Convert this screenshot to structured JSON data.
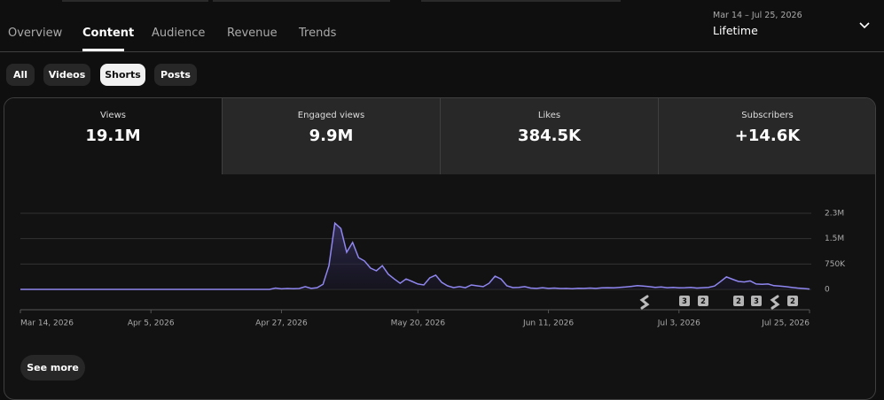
{
  "tabs": [
    "Overview",
    "Content",
    "Audience",
    "Revenue",
    "Trends"
  ],
  "date_range": {
    "range": "Mar 14 – Jul 25, 2026",
    "label": "Lifetime"
  },
  "filters": [
    "All",
    "Videos",
    "Shorts",
    "Posts"
  ],
  "metrics": [
    {
      "name": "Views",
      "value": "19.1M"
    },
    {
      "name": "Engaged views",
      "value": "9.9M"
    },
    {
      "name": "Likes",
      "value": "384.5K"
    },
    {
      "name": "Subscribers",
      "value": "+14.6K"
    }
  ],
  "see_more": "See more",
  "chart_data": {
    "type": "area",
    "color": "#8f86f0",
    "categories": [
      "Mar 14, 2026",
      null,
      null,
      null,
      null,
      null,
      null,
      null,
      null,
      null,
      null,
      null,
      null,
      null,
      null,
      null,
      null,
      null,
      null,
      null,
      null,
      null,
      "Apr 5, 2026",
      null,
      null,
      null,
      null,
      null,
      null,
      null,
      null,
      null,
      null,
      null,
      null,
      null,
      null,
      null,
      null,
      null,
      null,
      null,
      null,
      null,
      "Apr 27, 2026",
      null,
      null,
      null,
      null,
      null,
      null,
      null,
      null,
      null,
      null,
      null,
      null,
      null,
      null,
      null,
      null,
      null,
      null,
      null,
      null,
      null,
      null,
      "May 20, 2026",
      null,
      null,
      null,
      null,
      null,
      null,
      null,
      null,
      null,
      null,
      null,
      null,
      null,
      null,
      null,
      null,
      null,
      null,
      null,
      null,
      null,
      "Jun 11, 2026",
      null,
      null,
      null,
      null,
      null,
      null,
      null,
      null,
      null,
      null,
      null,
      null,
      null,
      null,
      null,
      null,
      null,
      null,
      null,
      null,
      null,
      "Jul 3, 2026",
      null,
      null,
      null,
      null,
      null,
      null,
      null,
      null,
      null,
      null,
      null,
      null,
      null,
      null,
      null,
      null,
      null,
      null,
      null,
      null,
      null,
      "Jul 25, 2026"
    ],
    "values": [
      0,
      0,
      0,
      0,
      0,
      0,
      0,
      0,
      0,
      0,
      0,
      0,
      0,
      0,
      0,
      0,
      0,
      0,
      0,
      0,
      0,
      0,
      0,
      0,
      0,
      0,
      0,
      0,
      0,
      0,
      0,
      0,
      0,
      0,
      0,
      0,
      0,
      0,
      0,
      0,
      0,
      0,
      0,
      40000,
      15000,
      25000,
      20000,
      25000,
      80000,
      30000,
      50000,
      150000,
      700000,
      1960000,
      1800000,
      1100000,
      1390000,
      940000,
      840000,
      630000,
      550000,
      700000,
      450000,
      310000,
      180000,
      310000,
      235000,
      160000,
      130000,
      340000,
      420000,
      210000,
      105000,
      52000,
      80000,
      50000,
      130000,
      105000,
      80000,
      180000,
      390000,
      310000,
      105000,
      52000,
      60000,
      80000,
      40000,
      30000,
      50000,
      30000,
      40000,
      25000,
      30000,
      20000,
      35000,
      30000,
      40000,
      30000,
      45000,
      50000,
      45000,
      60000,
      70000,
      90000,
      110000,
      100000,
      80000,
      60000,
      70000,
      50000,
      60000,
      45000,
      50000,
      60000,
      40000,
      50000,
      60000,
      100000,
      230000,
      370000,
      300000,
      235000,
      220000,
      250000,
      160000,
      150000,
      160000,
      110000,
      100000,
      80000,
      60000,
      40000,
      25000,
      10000
    ],
    "ylim": [
      0,
      2250000
    ],
    "yticks": [
      0,
      {
        "value": 750000,
        "label": "750K"
      },
      {
        "value": 1500000,
        "label": "1.5M"
      },
      {
        "value": 2250000,
        "label": "2.3M"
      }
    ],
    "grid": true,
    "annotations": [
      "3",
      "2",
      "2",
      "3",
      "2"
    ]
  }
}
